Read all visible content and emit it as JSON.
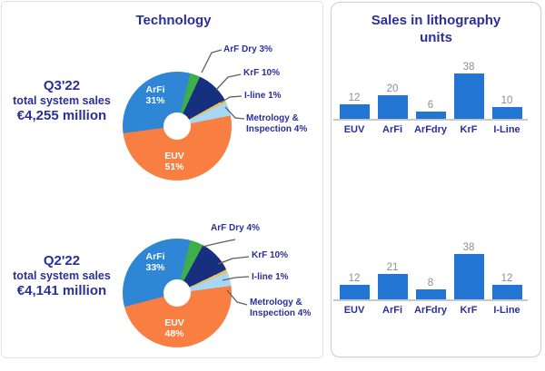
{
  "left_panel": {
    "title": "Technology",
    "q3": {
      "quarter": "Q3'22",
      "subtitle": "total system sales",
      "amount": "€4,255 million"
    },
    "q2": {
      "quarter": "Q2'22",
      "subtitle": "total system sales",
      "amount": "€4,141 million"
    }
  },
  "right_panel": {
    "title_line1": "Sales in lithography",
    "title_line2": "units"
  },
  "colors": {
    "heading_navy": "#2B2F9B",
    "bar_blue": "#2375D4",
    "value_gray": "#8E8E8E",
    "axis_gray": "#C8C8C8",
    "euv_orange": "#F97E42",
    "arfi_blue": "#2E86D5",
    "arfdry_green": "#3EAE49",
    "krf_navy": "#16307F",
    "iline_yellow": "#E2C368",
    "metrology_lightblue": "#A6D7F6"
  },
  "chart_data": [
    {
      "type": "pie",
      "subtype": "donut",
      "title": "Technology",
      "period": "Q3'22",
      "start_angle_deg": 14,
      "slices": [
        {
          "label": "ArF Dry",
          "value": 3,
          "color": "#3EAE49"
        },
        {
          "label": "KrF",
          "value": 10,
          "color": "#16307F"
        },
        {
          "label": "I-line",
          "value": 1,
          "color": "#E2C368"
        },
        {
          "label": "Metrology & Inspection",
          "value": 4,
          "color": "#A6D7F6"
        },
        {
          "label": "EUV",
          "value": 51,
          "color": "#F97E42",
          "display_pct": "51%"
        },
        {
          "label": "ArFi",
          "value": 31,
          "color": "#2E86D5",
          "display_pct": "31%"
        }
      ],
      "callouts": [
        {
          "lines": [
            "ArF Dry 3%"
          ]
        },
        {
          "lines": [
            "KrF 10%"
          ]
        },
        {
          "lines": [
            "I-line 1%"
          ]
        },
        {
          "lines": [
            "Metrology &",
            "Inspection 4%"
          ]
        }
      ]
    },
    {
      "type": "pie",
      "subtype": "donut",
      "title": "Technology",
      "period": "Q2'22",
      "start_angle_deg": 14,
      "slices": [
        {
          "label": "ArF Dry",
          "value": 4,
          "color": "#3EAE49"
        },
        {
          "label": "KrF",
          "value": 10,
          "color": "#16307F"
        },
        {
          "label": "I-line",
          "value": 1,
          "color": "#E2C368"
        },
        {
          "label": "Metrology & Inspection",
          "value": 4,
          "color": "#A6D7F6"
        },
        {
          "label": "EUV",
          "value": 48,
          "color": "#F97E42",
          "display_pct": "48%"
        },
        {
          "label": "ArFi",
          "value": 33,
          "color": "#2E86D5",
          "display_pct": "33%"
        }
      ],
      "callouts": [
        {
          "lines": [
            "ArF Dry 4%"
          ]
        },
        {
          "lines": [
            "KrF 10%"
          ]
        },
        {
          "lines": [
            "I-line 1%"
          ]
        },
        {
          "lines": [
            "Metrology &",
            "Inspection 4%"
          ]
        }
      ]
    },
    {
      "type": "bar",
      "title": "Sales in lithography units",
      "period": "Q3'22",
      "categories": [
        "EUV",
        "ArFi",
        "ArFdry",
        "KrF",
        "I-Line"
      ],
      "values": [
        12,
        20,
        6,
        38,
        10
      ],
      "bar_color": "#2375D4",
      "ylim": [
        0,
        42
      ],
      "grid": false,
      "value_labels": true
    },
    {
      "type": "bar",
      "title": "Sales in lithography units",
      "period": "Q2'22",
      "categories": [
        "EUV",
        "ArFi",
        "ArFdry",
        "KrF",
        "I-Line"
      ],
      "values": [
        12,
        21,
        8,
        38,
        12
      ],
      "bar_color": "#2375D4",
      "ylim": [
        0,
        42
      ],
      "grid": false,
      "value_labels": true
    }
  ]
}
